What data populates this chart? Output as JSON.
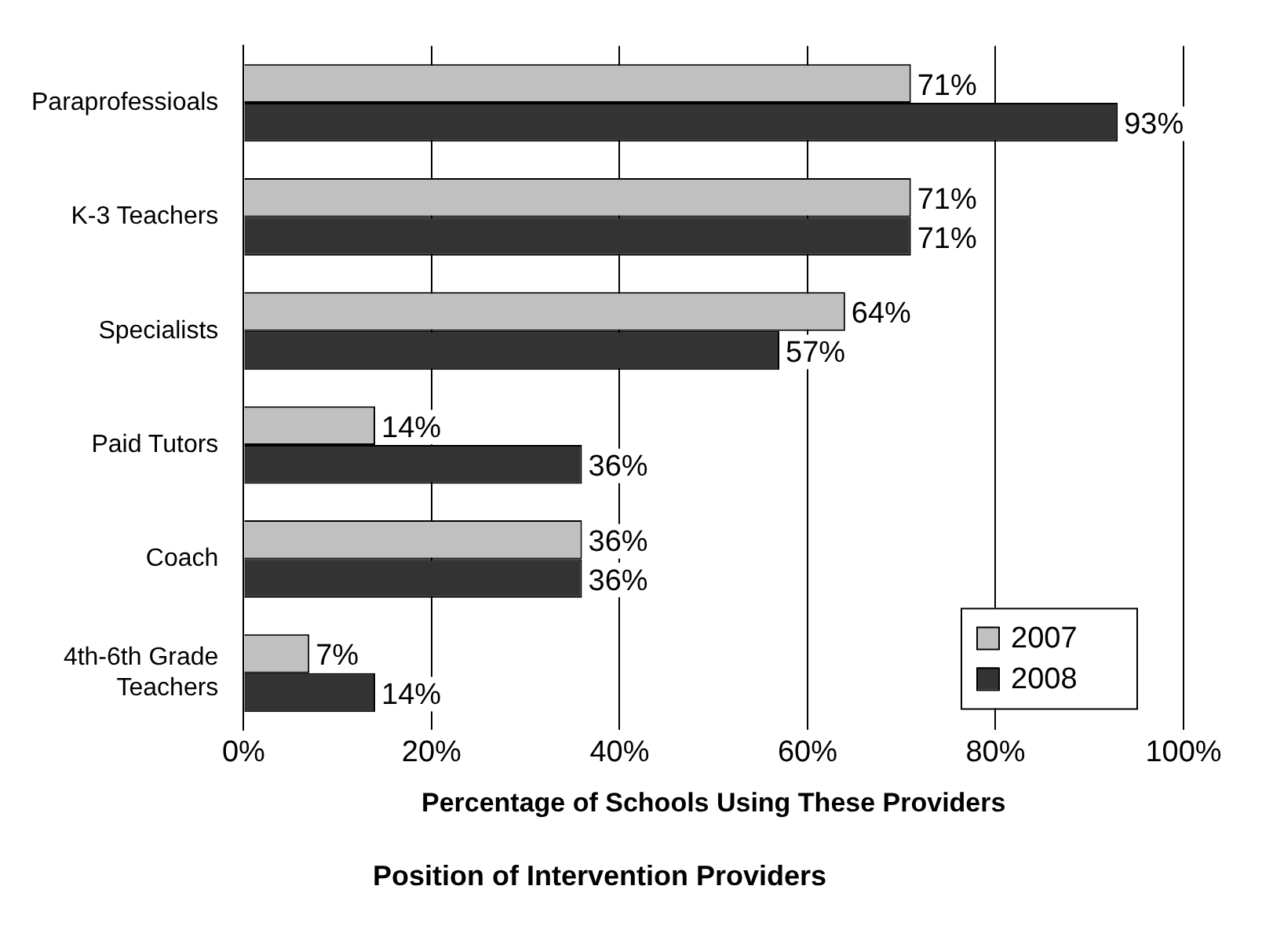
{
  "chart_data": {
    "type": "bar",
    "orientation": "horizontal",
    "title": "Position of Intervention Providers",
    "xlabel": "Percentage of Schools Using These Providers",
    "categories": [
      "Paraprofessioals",
      "K-3 Teachers",
      "Specialists",
      "Paid Tutors",
      "Coach",
      "4th-6th Grade Teachers"
    ],
    "series": [
      {
        "name": "2007",
        "color": "#c0c0c0",
        "values": [
          71,
          71,
          64,
          14,
          36,
          7
        ],
        "value_labels": [
          "71%",
          "71%",
          "64%",
          "14%",
          "36%",
          "7%"
        ]
      },
      {
        "name": "2008",
        "color": "#333333",
        "values": [
          93,
          71,
          57,
          36,
          36,
          14
        ],
        "value_labels": [
          "93%",
          "71%",
          "57%",
          "36%",
          "36%",
          "14%"
        ]
      }
    ],
    "xlim": [
      0,
      100
    ],
    "xticks": [
      {
        "value": 0,
        "label": "0%"
      },
      {
        "value": 20,
        "label": "20%"
      },
      {
        "value": 40,
        "label": "40%"
      },
      {
        "value": 60,
        "label": "60%"
      },
      {
        "value": 80,
        "label": "80%"
      },
      {
        "value": 100,
        "label": "100%"
      }
    ],
    "grid": "x",
    "legend": "bottom right"
  }
}
